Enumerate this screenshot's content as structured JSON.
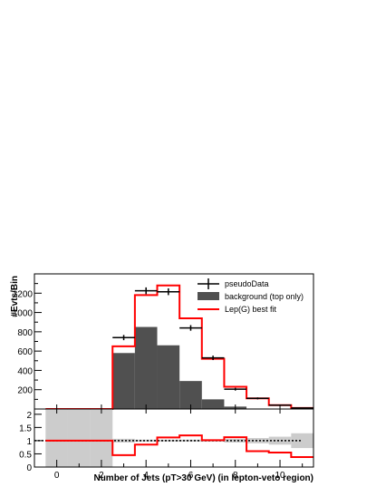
{
  "chart_data": [
    {
      "type": "bar",
      "panel": "top",
      "title": "",
      "ylabel": "#Evts/Bin",
      "xlabel": "",
      "xlim": [
        -1,
        11.5
      ],
      "ylim": [
        0,
        1400
      ],
      "x_ticks": [
        0,
        2,
        4,
        6,
        8,
        10
      ],
      "y_ticks": [
        200,
        400,
        600,
        800,
        1000,
        1200
      ],
      "y_tick_labels": [
        "200",
        "400",
        "600",
        "800",
        "1000",
        "1200"
      ],
      "bin_centers": [
        0,
        1,
        2,
        3,
        4,
        5,
        6,
        7,
        8,
        9,
        10,
        11
      ],
      "series": [
        {
          "name": "background (top only)",
          "style": "filled-histogram",
          "color": "#505050",
          "values": [
            0,
            0,
            0,
            580,
            850,
            660,
            290,
            100,
            25,
            5,
            2,
            1
          ]
        },
        {
          "name": "Lep(G) best fit",
          "style": "step-histogram",
          "color": "#ff0000",
          "values": [
            0,
            0,
            0,
            650,
            1180,
            1280,
            940,
            520,
            230,
            110,
            40,
            10
          ]
        },
        {
          "name": "pseudoData",
          "style": "points-with-errors",
          "color": "#000000",
          "values": [
            0,
            0,
            0,
            740,
            1225,
            1215,
            840,
            530,
            205,
            110,
            40,
            10
          ],
          "errors": [
            0,
            0,
            0,
            27,
            35,
            35,
            29,
            23,
            14,
            10,
            6,
            3
          ]
        }
      ],
      "legend": {
        "placement": "top-right",
        "entries": [
          "pseudoData",
          "background (top only)",
          "Lep(G) best fit"
        ]
      }
    },
    {
      "type": "line",
      "panel": "ratio",
      "xlabel": "Number of Jets (pT>30 GeV) (in lepton-veto region)",
      "ylabel": "",
      "xlim": [
        -1,
        11.5
      ],
      "ylim": [
        0,
        2.2
      ],
      "x_ticks": [
        0,
        2,
        4,
        6,
        8,
        10
      ],
      "x_tick_labels": [
        "0",
        "2",
        "4",
        "6",
        "8",
        "10"
      ],
      "y_ticks": [
        0,
        0.5,
        1,
        1.5,
        2
      ],
      "y_tick_labels": [
        "0",
        "0.5",
        "1",
        "1.5",
        "2"
      ],
      "bin_centers": [
        0,
        1,
        2,
        3,
        4,
        5,
        6,
        7,
        8,
        9,
        10,
        11
      ],
      "series": [
        {
          "name": "",
          "style": "step",
          "color": "#ff0000",
          "values": [
            1,
            1,
            1,
            0.45,
            0.85,
            1.12,
            1.2,
            1.02,
            1.13,
            0.6,
            0.55,
            0.38
          ]
        }
      ],
      "uncertainty_band": {
        "color": "#cccccc",
        "low": [
          0,
          0,
          0,
          0.93,
          0.96,
          0.96,
          0.96,
          0.96,
          0.93,
          0.9,
          0.85,
          0.72
        ],
        "high": [
          2.2,
          2.2,
          2.2,
          1.07,
          1.04,
          1.04,
          1.04,
          1.04,
          1.07,
          1.1,
          1.15,
          1.28
        ]
      },
      "reference_line": 1
    }
  ]
}
